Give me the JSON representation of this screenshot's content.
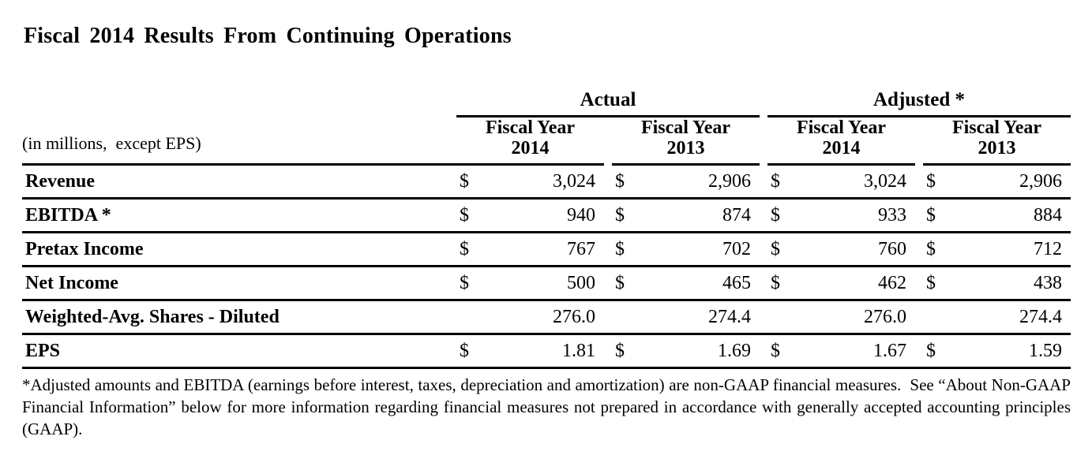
{
  "title": "Fiscal 2014 Results From Continuing Operations",
  "table": {
    "unit_label": "(in millions,  except EPS)",
    "group_headers": [
      {
        "label": "Actual"
      },
      {
        "label": "Adjusted *"
      }
    ],
    "column_headers": [
      {
        "line1": "Fiscal Year",
        "line2": "2014"
      },
      {
        "line1": "Fiscal Year",
        "line2": "2013"
      },
      {
        "line1": "Fiscal Year",
        "line2": "2014"
      },
      {
        "line1": "Fiscal Year",
        "line2": "2013"
      }
    ],
    "rows": [
      {
        "label": "Revenue",
        "cells": [
          {
            "cur": "$",
            "val": "3,024"
          },
          {
            "cur": "$",
            "val": "2,906"
          },
          {
            "cur": "$",
            "val": "3,024"
          },
          {
            "cur": "$",
            "val": "2,906"
          }
        ]
      },
      {
        "label": "EBITDA *",
        "cells": [
          {
            "cur": "$",
            "val": "940"
          },
          {
            "cur": "$",
            "val": "874"
          },
          {
            "cur": "$",
            "val": "933"
          },
          {
            "cur": "$",
            "val": "884"
          }
        ]
      },
      {
        "label": "Pretax Income",
        "cells": [
          {
            "cur": "$",
            "val": "767"
          },
          {
            "cur": "$",
            "val": "702"
          },
          {
            "cur": "$",
            "val": "760"
          },
          {
            "cur": "$",
            "val": "712"
          }
        ]
      },
      {
        "label": "Net Income",
        "cells": [
          {
            "cur": "$",
            "val": "500"
          },
          {
            "cur": "$",
            "val": "465"
          },
          {
            "cur": "$",
            "val": "462"
          },
          {
            "cur": "$",
            "val": "438"
          }
        ]
      },
      {
        "label": "Weighted-Avg. Shares - Diluted",
        "cells": [
          {
            "cur": "",
            "val": "276.0"
          },
          {
            "cur": "",
            "val": "274.4"
          },
          {
            "cur": "",
            "val": "276.0"
          },
          {
            "cur": "",
            "val": "274.4"
          }
        ]
      },
      {
        "label": "EPS",
        "cells": [
          {
            "cur": "$",
            "val": "1.81"
          },
          {
            "cur": "$",
            "val": "1.69"
          },
          {
            "cur": "$",
            "val": "1.67"
          },
          {
            "cur": "$",
            "val": "1.59"
          }
        ]
      }
    ]
  },
  "footnote": "*Adjusted amounts and EBITDA (earnings before interest, taxes, depreciation and amortization) are non-GAAP financial measures.  See “About Non-GAAP Financial Information” below for more information regarding financial measures not prepared in accordance with generally accepted accounting principles (GAAP).",
  "colors": {
    "text": "#000000",
    "background": "#ffffff",
    "rule": "#000000"
  }
}
